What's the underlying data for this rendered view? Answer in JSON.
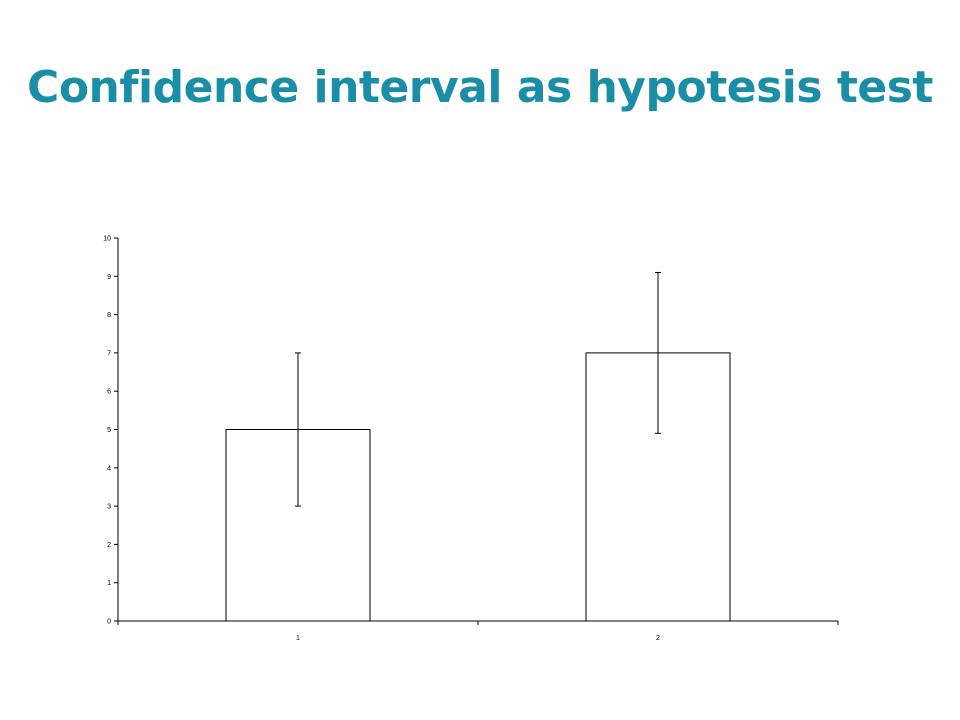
{
  "slide": {
    "title": "Confidence interval as hypotesis test",
    "title_color": "#1a8ea6"
  },
  "chart_data": {
    "type": "bar",
    "categories": [
      "1",
      "2"
    ],
    "values": [
      5,
      7
    ],
    "error_bars": [
      {
        "low": 3,
        "high": 7
      },
      {
        "low": 4.9,
        "high": 9.1
      }
    ],
    "ylim": [
      0,
      10
    ],
    "yticks": [
      0,
      1,
      2,
      3,
      4,
      5,
      6,
      7,
      8,
      9,
      10
    ],
    "grid": false,
    "legend": "none",
    "bar_fill": "#ffffff",
    "bar_stroke": "#000000"
  }
}
